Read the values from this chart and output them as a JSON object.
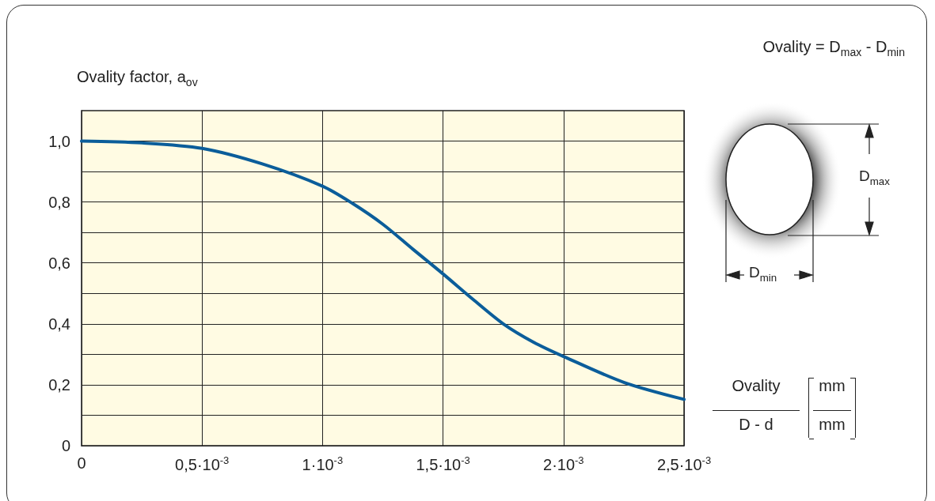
{
  "chart_data": {
    "type": "line",
    "ylabel": "Ovality factor, a$_{ov}$",
    "annotations": [
      "Ovality = D$_{max}$ - D$_{min}$",
      "D$_{max}$",
      "D$_{min}$",
      "Ovality",
      "D - d",
      "mm",
      "mm"
    ],
    "x": [
      0,
      0.00025,
      0.0005,
      0.00075,
      0.001,
      0.001125,
      0.00125,
      0.001375,
      0.0015,
      0.001625,
      0.00175,
      0.001875,
      0.002,
      0.00225,
      0.0025
    ],
    "series": [
      {
        "color": "#0b5d9a",
        "values": [
          1.0,
          0.994,
          0.976,
          0.925,
          0.852,
          0.795,
          0.727,
          0.645,
          0.564,
          0.48,
          0.4,
          0.34,
          0.293,
          0.208,
          0.152
        ]
      }
    ],
    "xlim": [
      0,
      0.0025
    ],
    "xticks": [
      0,
      {
        "value": 0.0005,
        "label": "0,5·10$^{-3}$"
      },
      {
        "value": 0.001,
        "label": "1·10$^{-3}$"
      },
      {
        "value": 0.0015,
        "label": "1,5·10$^{-3}$"
      },
      {
        "value": 0.002,
        "label": "2·10$^{-3}$"
      },
      {
        "value": 0.0025,
        "label": "2,5·10$^{-3}$"
      }
    ],
    "ylim": [
      0,
      1.1
    ],
    "yticks": [
      0,
      {
        "value": 0.1,
        "label": null
      },
      {
        "value": 0.2,
        "label": "0,2"
      },
      {
        "value": 0.3,
        "label": null
      },
      {
        "value": 0.4,
        "label": "0,4"
      },
      {
        "value": 0.5,
        "label": null
      },
      {
        "value": 0.6,
        "label": "0,6"
      },
      {
        "value": 0.7,
        "label": null
      },
      {
        "value": 0.8,
        "label": "0,8"
      },
      {
        "value": 0.9,
        "label": null
      },
      {
        "value": 1.0,
        "label": "1,0"
      }
    ],
    "grid": true,
    "line_style": "solid",
    "marker": "none"
  }
}
